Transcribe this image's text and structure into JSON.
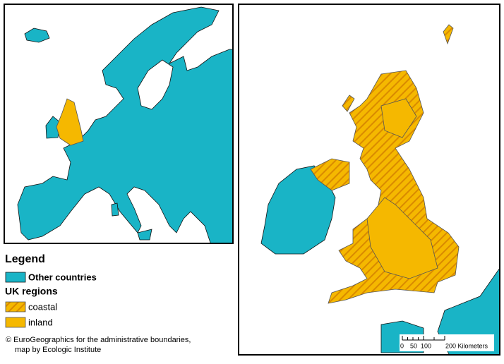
{
  "legend": {
    "title": "Legend",
    "other_label": "Other countries",
    "group_title": "UK regions",
    "group_items": [
      "coastal",
      "inland"
    ]
  },
  "credit": [
    "© EuroGeographics for the administrative boundaries,",
    "map by Ecologic Institute"
  ],
  "scale_bar": {
    "labels": [
      "0",
      "50",
      "100",
      "200 Kilometers"
    ]
  }
}
